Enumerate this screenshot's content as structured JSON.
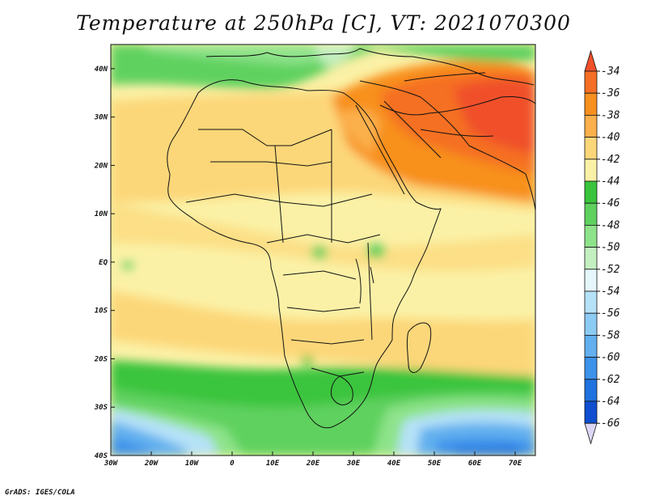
{
  "title": "Temperature at 250hPa [C], VT: 2021070300",
  "credit": "GrADS: IGES/COLA",
  "map": {
    "lon_range": [
      -30,
      75
    ],
    "lat_range": [
      -40,
      45
    ],
    "x_ticks": [
      "30W",
      "20W",
      "10W",
      "0",
      "10E",
      "20E",
      "30E",
      "40E",
      "50E",
      "60E",
      "70E"
    ],
    "y_ticks": [
      "40N",
      "30N",
      "20N",
      "10N",
      "EQ",
      "10S",
      "20S",
      "30S",
      "40S"
    ]
  },
  "colorbar": {
    "labels": [
      "-34",
      "-36",
      "-38",
      "-40",
      "-42",
      "-44",
      "-46",
      "-48",
      "-50",
      "-52",
      "-54",
      "-56",
      "-58",
      "-60",
      "-62",
      "-64",
      "-66"
    ],
    "colors": [
      "#f0502a",
      "#f56f24",
      "#f8901f",
      "#fbb04c",
      "#fcd779",
      "#fbf1a6",
      "#3ac43d",
      "#5fd15f",
      "#8ee38a",
      "#c4f0c1",
      "#e6f7fc",
      "#b6e2f8",
      "#8ccbf4",
      "#62b0ef",
      "#3d92ea",
      "#1f72e0",
      "#0f4fd0",
      "#08208a"
    ]
  }
}
